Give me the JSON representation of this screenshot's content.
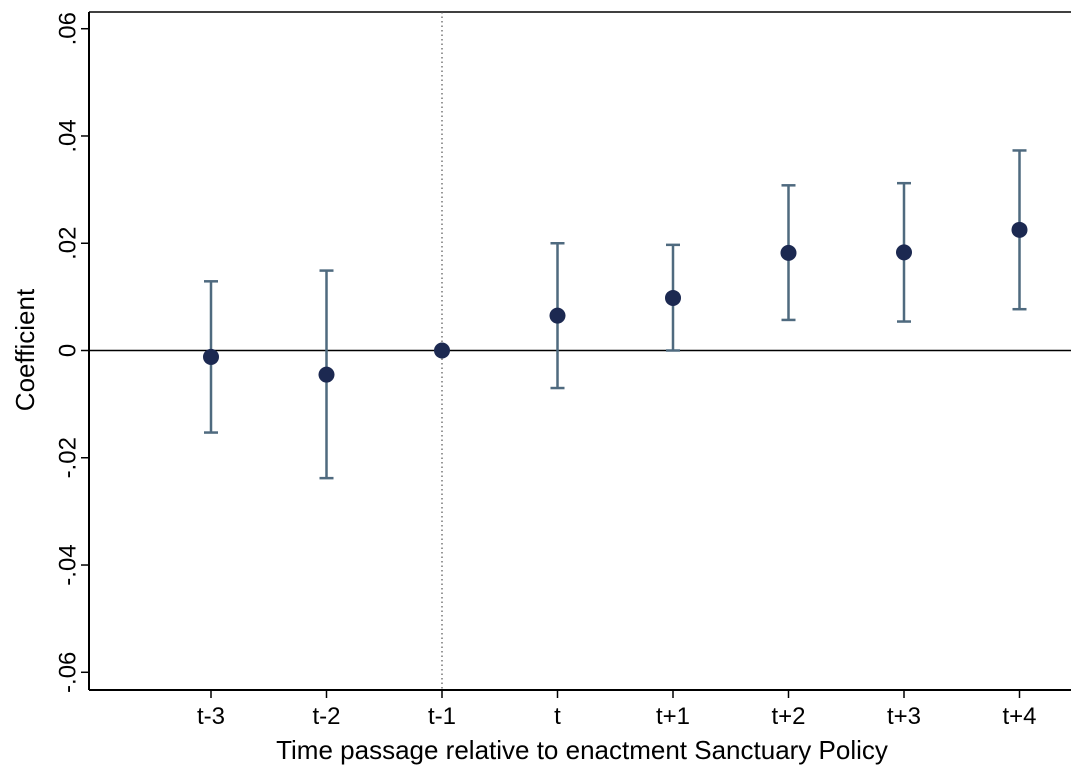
{
  "chart_data": {
    "type": "scatter",
    "title": "",
    "xlabel": "Time passage relative to enactment Sanctuary Policy",
    "ylabel": "Coefficient",
    "categories": [
      "t-3",
      "t-2",
      "t-1",
      "t",
      "t+1",
      "t+2",
      "t+3",
      "t+4"
    ],
    "series": [
      {
        "estimates": [
          -0.0012,
          -0.0045,
          0.0,
          0.0065,
          0.0098,
          0.0182,
          0.0183,
          0.0225
        ],
        "ci_low": [
          -0.0153,
          -0.0238,
          0.0,
          -0.007,
          0.0,
          0.0057,
          0.0054,
          0.0077
        ],
        "ci_high": [
          0.0129,
          0.0149,
          0.0,
          0.02,
          0.0197,
          0.0308,
          0.0312,
          0.0373
        ]
      }
    ],
    "yticks": [
      -0.06,
      -0.04,
      -0.02,
      0,
      0.02,
      0.04,
      0.06
    ],
    "ytick_labels": [
      "-.06",
      "-.04",
      "-.02",
      "0",
      ".02",
      ".04",
      ".06"
    ],
    "ylim": [
      -0.0635,
      0.0635
    ],
    "reference_lines": {
      "horizontal_y": 0,
      "vertical_dotted_at": "t-1"
    },
    "grid": false,
    "colors": {
      "marker": "#1c2951",
      "errorbar": "#4f6a7f",
      "axis": "#000000",
      "reference": "#000000"
    }
  }
}
